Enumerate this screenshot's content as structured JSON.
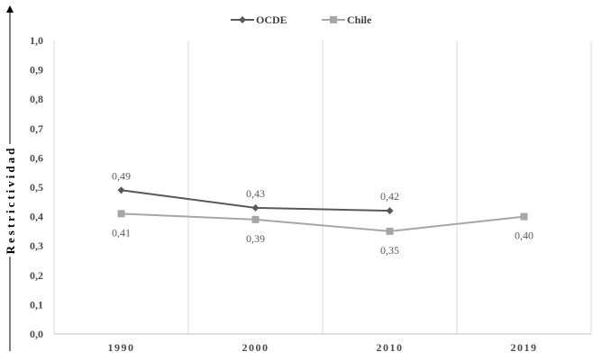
{
  "chart_data": {
    "type": "line",
    "categories": [
      "1990",
      "2000",
      "2010",
      "2019"
    ],
    "series": [
      {
        "name": "OCDE",
        "values": [
          0.49,
          0.43,
          0.42,
          null
        ],
        "labels": [
          "0,49",
          "0,43",
          "0,42",
          null
        ],
        "color": "#595959",
        "marker": "diamond"
      },
      {
        "name": "Chile",
        "values": [
          0.41,
          0.39,
          0.35,
          0.4
        ],
        "labels": [
          "0,41",
          "0,39",
          "0,35",
          "0,40"
        ],
        "color": "#a6a6a6",
        "marker": "square"
      }
    ],
    "ylabel": "Restrictividad",
    "ylim": [
      0,
      1.0
    ],
    "yticks": [
      0.0,
      0.1,
      0.2,
      0.3,
      0.4,
      0.5,
      0.6,
      0.7,
      0.8,
      0.9,
      1.0
    ],
    "ytick_labels": [
      "0,0",
      "0,1",
      "0,2",
      "0,3",
      "0,4",
      "0,5",
      "0,6",
      "0,7",
      "0,8",
      "0,9",
      "1,0"
    ],
    "grid": "vertical",
    "legend": "top-center"
  }
}
